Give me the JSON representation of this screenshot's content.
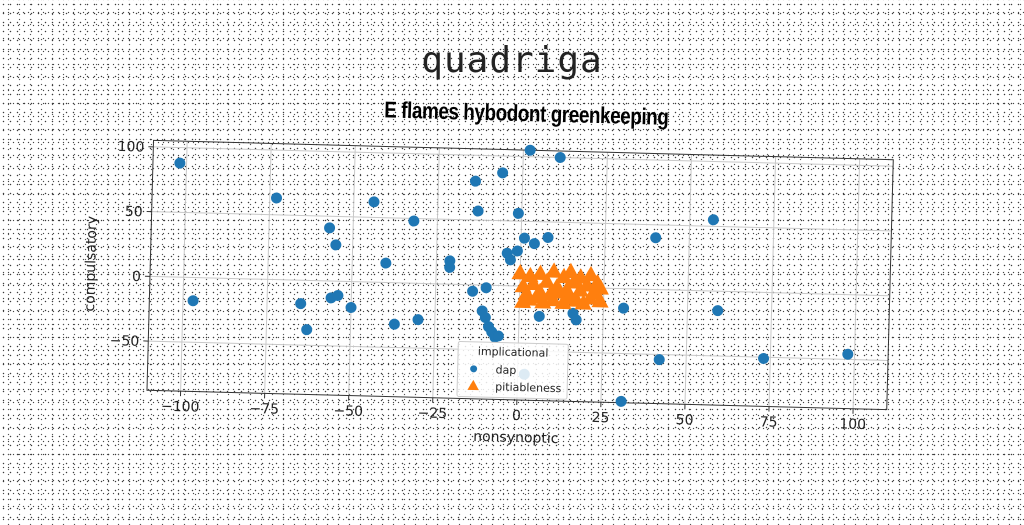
{
  "brand": "quadriga",
  "chart_data": {
    "type": "scatter",
    "title": "E flames hybodont greenkeeping",
    "xlabel": "nonsynoptic",
    "ylabel": "compulsatory",
    "xlim": [
      -110,
      110
    ],
    "ylim": [
      -88,
      105
    ],
    "xticks": [
      -100,
      -75,
      -50,
      -25,
      0,
      25,
      50,
      75,
      100
    ],
    "yticks": [
      -50,
      0,
      50,
      100
    ],
    "xtick_labels": [
      "−100",
      "−75",
      "−50",
      "−25",
      "0",
      "25",
      "50",
      "75",
      "100"
    ],
    "ytick_labels": [
      "−50",
      "0",
      "50",
      "100"
    ],
    "grid": true,
    "legend": {
      "title": "implicational",
      "placement": "lower-center"
    },
    "series": [
      {
        "name": "dap",
        "marker": "circle",
        "color": "#1f77b4",
        "points": [
          [
            -102,
            88
          ],
          [
            -97,
            -18
          ],
          [
            -73,
            63
          ],
          [
            -65,
            -18
          ],
          [
            -63,
            -38
          ],
          [
            -57,
            41
          ],
          [
            -56,
            -13
          ],
          [
            -55,
            28
          ],
          [
            -54,
            -11
          ],
          [
            -50,
            -20
          ],
          [
            -44,
            62
          ],
          [
            -40,
            15
          ],
          [
            -37,
            -32
          ],
          [
            -32,
            48
          ],
          [
            -30,
            -28
          ],
          [
            -21,
            18
          ],
          [
            -21,
            13
          ],
          [
            -14,
            -5
          ],
          [
            -14,
            80
          ],
          [
            -13,
            57
          ],
          [
            -11,
            -20
          ],
          [
            -10,
            -25
          ],
          [
            -10,
            -2
          ],
          [
            -9,
            -32
          ],
          [
            -8,
            -36
          ],
          [
            -7,
            -40
          ],
          [
            -6,
            87
          ],
          [
            -6,
            -39
          ],
          [
            -4,
            25
          ],
          [
            -3,
            20
          ],
          [
            -1,
            56
          ],
          [
            -1,
            27
          ],
          [
            1,
            37
          ],
          [
            2,
            105
          ],
          [
            4,
            33
          ],
          [
            6,
            -23
          ],
          [
            8,
            38
          ],
          [
            11,
            100
          ],
          [
            16,
            -20
          ],
          [
            17,
            -25
          ],
          [
            31,
            -15
          ],
          [
            31,
            -87
          ],
          [
            40,
            40
          ],
          [
            42,
            -54
          ],
          [
            57,
            55
          ],
          [
            59,
            -15
          ],
          [
            73,
            -51
          ],
          [
            98,
            -46
          ],
          [
            2,
            -68
          ]
        ]
      },
      {
        "name": "pitiableness",
        "marker": "triangle",
        "color": "#ff7f0e",
        "points": [
          [
            0,
            10
          ],
          [
            1,
            0
          ],
          [
            1,
            -12
          ],
          [
            2,
            -6
          ],
          [
            3,
            8
          ],
          [
            3,
            -10
          ],
          [
            4,
            2
          ],
          [
            5,
            -8
          ],
          [
            6,
            10
          ],
          [
            6,
            -4
          ],
          [
            7,
            -12
          ],
          [
            8,
            4
          ],
          [
            9,
            -6
          ],
          [
            10,
            12
          ],
          [
            10,
            -10
          ],
          [
            11,
            0
          ],
          [
            12,
            -4
          ],
          [
            13,
            8
          ],
          [
            13,
            -12
          ],
          [
            14,
            -2
          ],
          [
            15,
            12
          ],
          [
            15,
            -8
          ],
          [
            16,
            4
          ],
          [
            17,
            -10
          ],
          [
            18,
            8
          ],
          [
            18,
            -2
          ],
          [
            19,
            -12
          ],
          [
            20,
            2
          ],
          [
            21,
            10
          ],
          [
            21,
            -8
          ],
          [
            22,
            -4
          ],
          [
            23,
            4
          ],
          [
            24,
            -10
          ],
          [
            24,
            0
          ]
        ]
      }
    ]
  }
}
